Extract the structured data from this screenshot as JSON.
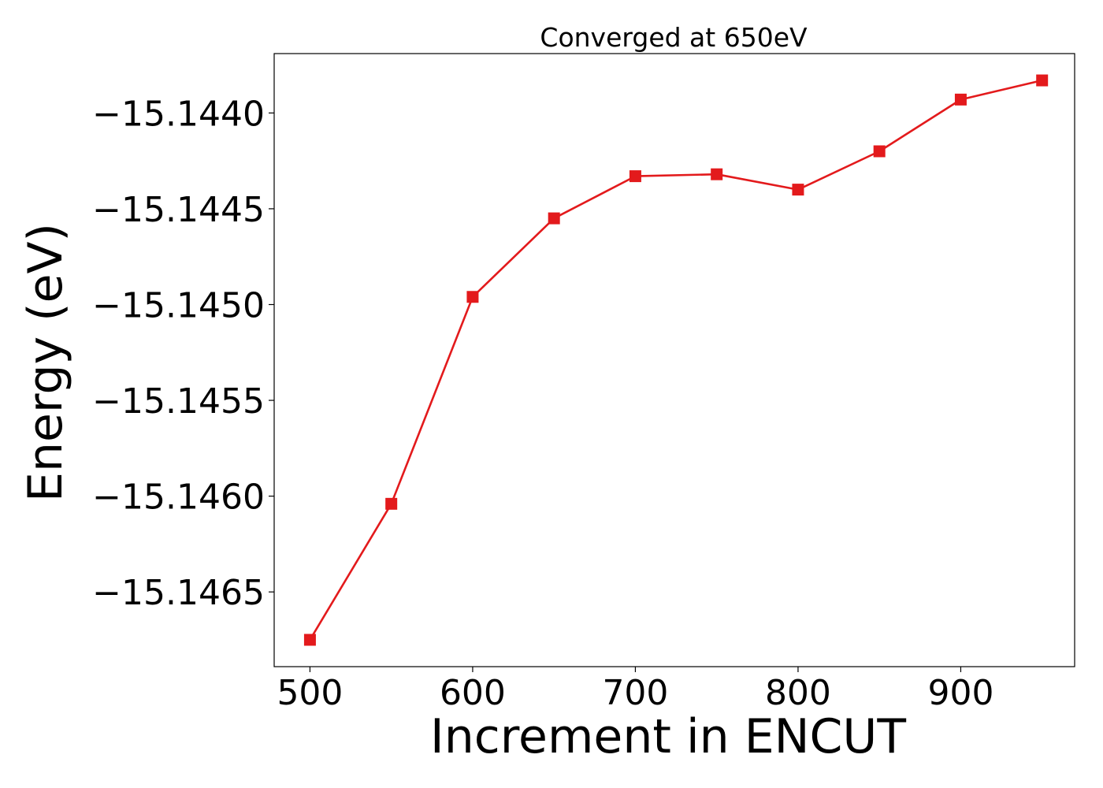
{
  "chart_data": {
    "type": "line",
    "title": "Converged at 650eV",
    "xlabel": "Increment in ENCUT",
    "ylabel": "Energy (eV)",
    "x": [
      500,
      550,
      600,
      650,
      700,
      750,
      800,
      850,
      900,
      950
    ],
    "series": [
      {
        "values": [
          -15.14675,
          -15.14604,
          -15.14496,
          -15.14455,
          -15.14433,
          -15.14432,
          -15.1444,
          -15.1442,
          -15.14393,
          -15.14383
        ],
        "color": "#e31a1c",
        "marker": "square"
      }
    ],
    "xticks": [
      500,
      600,
      700,
      800,
      900
    ],
    "xtick_labels": [
      "500",
      "600",
      "700",
      "800",
      "900"
    ],
    "yticks": [
      -15.1465,
      -15.146,
      -15.1455,
      -15.145,
      -15.1445,
      -15.144
    ],
    "ytick_labels": [
      "−15.1465",
      "−15.1460",
      "−15.1455",
      "−15.1450",
      "−15.1445",
      "−15.1440"
    ],
    "xlim": [
      478,
      970
    ],
    "ylim": [
      -15.14689,
      -15.14369
    ],
    "grid": false,
    "legend": "none"
  }
}
